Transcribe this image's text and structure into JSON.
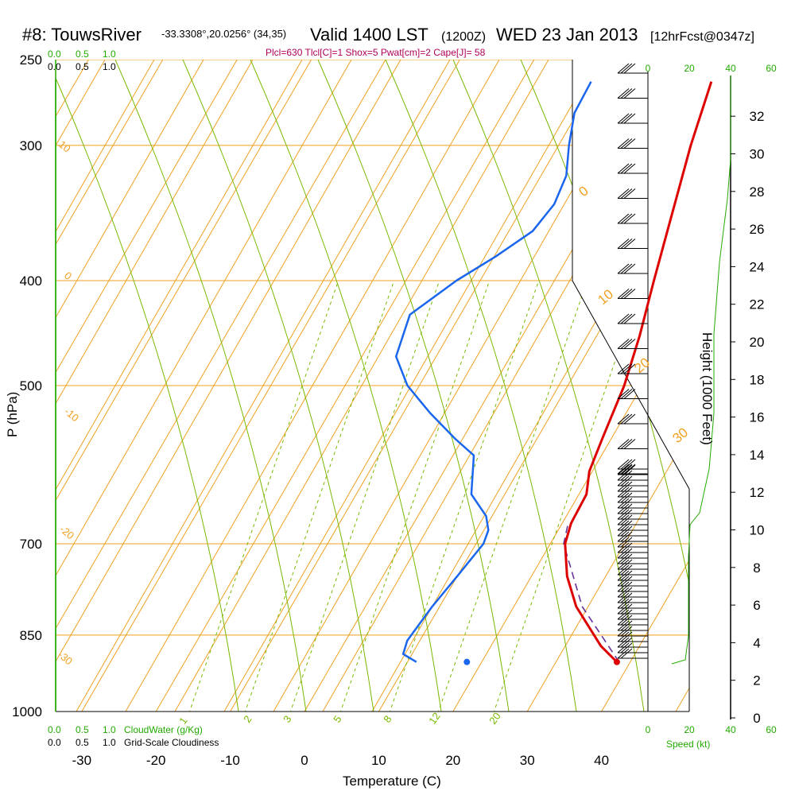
{
  "header": {
    "station": "#8: TouwsRiver",
    "location": "-33.3308°,20.0256° (34,35)",
    "valid": "Valid 1400 LST",
    "zulu": "(1200Z)",
    "date": "WED 23 Jan 2013",
    "forecast": "[12hrFcst@0347z]",
    "indices": "Plcl=630 Tlcl[C]=1 Shox=5 Pwat[cm]=2 Cape[J]= 58"
  },
  "scales": {
    "cloud_water_ticks": [
      "0.0",
      "0.5",
      "1.0"
    ],
    "cloudiness_ticks": [
      "0.0",
      "0.5",
      "1.0"
    ],
    "cloud_water_label": "CloudWater (g/Kg)",
    "cloudiness_label": "Grid-Scale Cloudiness",
    "speed_ticks": [
      "0",
      "20",
      "40",
      "60"
    ],
    "speed_label": "Speed (kt)"
  },
  "chart_data": {
    "type": "skew-t",
    "xlabel": "Temperature (C)",
    "ylabel": "P (hPa)",
    "y2label": "Height (1000 Feet)",
    "x_ticks": [
      -30,
      -20,
      -10,
      0,
      10,
      20,
      30,
      40
    ],
    "p_ticks": [
      250,
      300,
      400,
      500,
      700,
      850,
      1000
    ],
    "height_ticks_kft": [
      0,
      2,
      4,
      6,
      8,
      10,
      12,
      14,
      16,
      18,
      20,
      22,
      24,
      26,
      28,
      30,
      32
    ],
    "temperature_profile": [
      {
        "p": 900,
        "t": 38.2
      },
      {
        "p": 870,
        "t": 34.8
      },
      {
        "p": 800,
        "t": 28.4
      },
      {
        "p": 750,
        "t": 24.8
      },
      {
        "p": 700,
        "t": 22.0
      },
      {
        "p": 670,
        "t": 21.2
      },
      {
        "p": 630,
        "t": 21.0
      },
      {
        "p": 600,
        "t": 19.6
      },
      {
        "p": 560,
        "t": 18.8
      },
      {
        "p": 500,
        "t": 17.6
      },
      {
        "p": 450,
        "t": 15.8
      },
      {
        "p": 400,
        "t": 13.4
      },
      {
        "p": 350,
        "t": 10.8
      },
      {
        "p": 300,
        "t": 7.8
      },
      {
        "p": 262,
        "t": 5.6
      }
    ],
    "dewpoint_profile": [
      {
        "p": 900,
        "t": 11.2
      },
      {
        "p": 885,
        "t": 8.8
      },
      {
        "p": 860,
        "t": 8.3
      },
      {
        "p": 800,
        "t": 9.0
      },
      {
        "p": 750,
        "t": 10.0
      },
      {
        "p": 700,
        "t": 11.0
      },
      {
        "p": 680,
        "t": 10.6
      },
      {
        "p": 660,
        "t": 9.2
      },
      {
        "p": 630,
        "t": 5.5
      },
      {
        "p": 580,
        "t": 2.8
      },
      {
        "p": 560,
        "t": -1.0
      },
      {
        "p": 530,
        "t": -6.4
      },
      {
        "p": 500,
        "t": -11.6
      },
      {
        "p": 470,
        "t": -15.4
      },
      {
        "p": 430,
        "t": -16.8
      },
      {
        "p": 400,
        "t": -13.2
      },
      {
        "p": 380,
        "t": -9.8
      },
      {
        "p": 360,
        "t": -6.8
      },
      {
        "p": 340,
        "t": -6.0
      },
      {
        "p": 320,
        "t": -6.6
      },
      {
        "p": 300,
        "t": -8.6
      },
      {
        "p": 280,
        "t": -10.4
      },
      {
        "p": 262,
        "t": -10.6
      }
    ],
    "parcel_path": [
      {
        "p": 900,
        "t": 38.5
      },
      {
        "p": 800,
        "t": 29.2
      },
      {
        "p": 700,
        "t": 21.8
      },
      {
        "p": 670,
        "t": 20.8
      }
    ],
    "surface_dewpoint_dot": {
      "p": 900,
      "t": 18.0
    },
    "surface_temperature_dot": {
      "p": 900,
      "t": 38.2
    },
    "isotherm_labels": [
      "-10",
      "0",
      "10",
      "20",
      "30"
    ],
    "mixing_ratio_labels": [
      "1",
      "2",
      "3",
      "5",
      "8",
      "12",
      "20"
    ],
    "dry_adiabat_labels": [
      "10",
      "0",
      "-10",
      "-20",
      "-30"
    ],
    "colors": {
      "temperature": "#dd0000",
      "dewpoint": "#1a66ee",
      "parcel": "#663399",
      "isobar_isotherm": "#f0a020",
      "moist_adiabat": "#7ab800",
      "cloud": "#22aa00"
    }
  }
}
